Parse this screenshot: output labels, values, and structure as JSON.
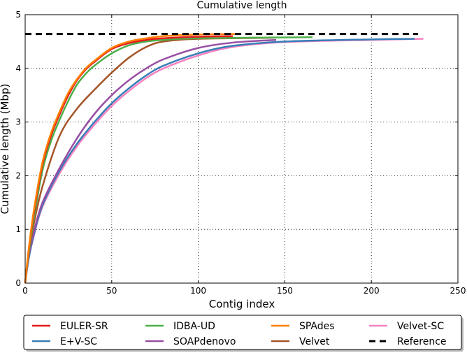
{
  "chart_data": {
    "type": "line",
    "title": "Cumulative length",
    "xlabel": "Contig index",
    "ylabel": "Cumulative length (Mbp)",
    "xlim": [
      0,
      250
    ],
    "ylim": [
      0,
      5
    ],
    "xticks": [
      0,
      50,
      100,
      150,
      200,
      250
    ],
    "yticks": [
      0,
      1,
      2,
      3,
      4,
      5
    ],
    "grid": true,
    "legend_placement": "bottom-outside",
    "series": [
      {
        "name": "EULER-SR",
        "color": "#e41a1c",
        "style": "solid",
        "x": [
          0,
          2,
          5,
          10,
          15,
          20,
          25,
          30,
          35,
          40,
          50,
          60,
          70,
          80,
          100,
          120
        ],
        "y": [
          0,
          0.6,
          1.3,
          2.2,
          2.75,
          3.15,
          3.5,
          3.78,
          3.98,
          4.12,
          4.36,
          4.47,
          4.53,
          4.56,
          4.59,
          4.6
        ]
      },
      {
        "name": "E+V-SC",
        "color": "#377eb8",
        "style": "solid",
        "x": [
          0,
          2,
          5,
          10,
          20,
          30,
          40,
          50,
          60,
          70,
          80,
          100,
          120,
          150,
          200,
          225
        ],
        "y": [
          0,
          0.45,
          0.9,
          1.45,
          2.1,
          2.6,
          3.0,
          3.35,
          3.63,
          3.87,
          4.05,
          4.28,
          4.42,
          4.5,
          4.54,
          4.55
        ]
      },
      {
        "name": "IDBA-UD",
        "color": "#4daf4a",
        "style": "solid",
        "x": [
          0,
          2,
          5,
          10,
          15,
          20,
          25,
          30,
          35,
          40,
          50,
          60,
          70,
          80,
          100,
          166
        ],
        "y": [
          0,
          0.55,
          1.2,
          2.1,
          2.65,
          3.05,
          3.4,
          3.7,
          3.9,
          4.05,
          4.28,
          4.43,
          4.5,
          4.53,
          4.56,
          4.58
        ]
      },
      {
        "name": "SOAPdenovo",
        "color": "#984ea3",
        "style": "solid",
        "x": [
          0,
          2,
          5,
          10,
          20,
          30,
          40,
          50,
          60,
          70,
          80,
          100,
          120,
          145
        ],
        "y": [
          0,
          0.5,
          0.95,
          1.5,
          2.15,
          2.7,
          3.15,
          3.5,
          3.78,
          4.0,
          4.17,
          4.38,
          4.48,
          4.53
        ]
      },
      {
        "name": "SPAdes",
        "color": "#ff7f00",
        "style": "solid",
        "x": [
          0,
          2,
          5,
          10,
          15,
          20,
          25,
          30,
          35,
          40,
          50,
          60,
          70,
          80,
          100,
          124
        ],
        "y": [
          0,
          0.62,
          1.35,
          2.25,
          2.8,
          3.2,
          3.55,
          3.8,
          4.0,
          4.14,
          4.38,
          4.5,
          4.56,
          4.6,
          4.63,
          4.64
        ]
      },
      {
        "name": "Velvet",
        "color": "#a65628",
        "style": "solid",
        "x": [
          0,
          2,
          5,
          10,
          20,
          30,
          40,
          50,
          60,
          70,
          80,
          100,
          144
        ],
        "y": [
          0,
          0.55,
          1.1,
          1.8,
          2.75,
          3.25,
          3.6,
          3.92,
          4.2,
          4.4,
          4.5,
          4.55,
          4.57
        ]
      },
      {
        "name": "Velvet-SC",
        "color": "#f781bf",
        "style": "solid",
        "x": [
          0,
          2,
          5,
          10,
          20,
          30,
          40,
          50,
          60,
          70,
          80,
          100,
          120,
          150,
          200,
          230
        ],
        "y": [
          0,
          0.45,
          0.88,
          1.42,
          2.05,
          2.55,
          2.95,
          3.3,
          3.58,
          3.82,
          4.0,
          4.24,
          4.4,
          4.49,
          4.53,
          4.55
        ]
      },
      {
        "name": "Reference",
        "color": "#000000",
        "style": "dashed",
        "x": [
          0,
          227
        ],
        "y": [
          4.64,
          4.64
        ]
      }
    ]
  }
}
